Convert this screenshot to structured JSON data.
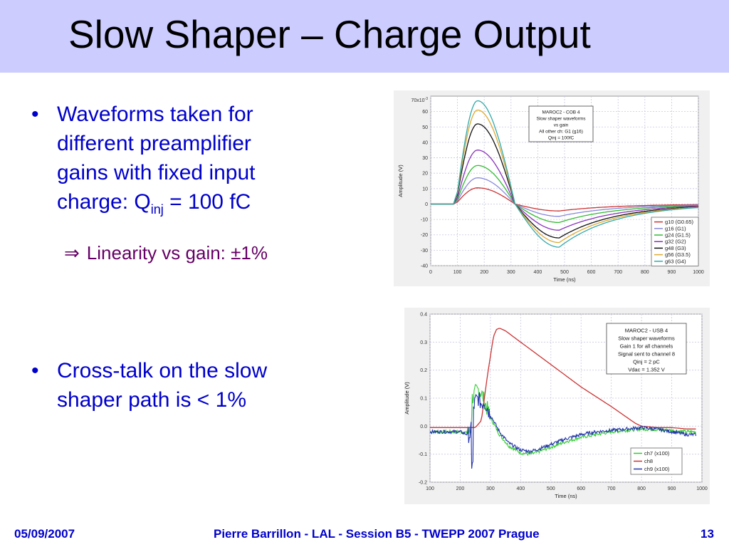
{
  "slide": {
    "title": "Slow Shaper – Charge Output",
    "bullet1": {
      "line1": "Waveforms taken for",
      "line2": "different preamplifier",
      "line3": "gains with fixed input",
      "line4_prefix": "charge: Q",
      "line4_sub": "inj",
      "line4_suffix": " = 100 fC"
    },
    "sub_bullet": {
      "arrow": "⇒",
      "text": "Linearity vs gain: ±1%"
    },
    "bullet2": {
      "line1": "Cross-talk on the slow",
      "line2": "shaper path is < 1%"
    },
    "bullet_glyph": "•"
  },
  "footer": {
    "date": "05/09/2007",
    "center": "Pierre Barrillon - LAL - Session B5 - TWEPP 2007 Prague",
    "page": "13"
  },
  "chart_data": [
    {
      "type": "line",
      "xlabel": "Time (ns)",
      "ylabel": "Amplitude (V)",
      "y_exponent_label": "70x10",
      "y_exponent_sup": "-3",
      "xlim": [
        0,
        1000
      ],
      "ylim": [
        -0.04,
        0.07
      ],
      "xticks": [
        0,
        100,
        200,
        300,
        400,
        500,
        600,
        700,
        800,
        900,
        1000
      ],
      "xtick_labels": [
        "0",
        "100",
        "200",
        "300",
        "400",
        "500",
        "600",
        "700",
        "800",
        "900",
        "1000"
      ],
      "yticks": [
        -0.04,
        -0.03,
        -0.02,
        -0.01,
        0,
        0.01,
        0.02,
        0.03,
        0.04,
        0.05,
        0.06
      ],
      "ytick_labels": [
        "-40",
        "-30",
        "-20",
        "-10",
        "0",
        "10",
        "20",
        "30",
        "40",
        "50",
        "60"
      ],
      "grid": true,
      "legend_position": "bottom-right",
      "annotation": [
        "MAROC2 - COB 4",
        "Slow shaper waveforms",
        "vs gain",
        "All other ch: G1 (g16)",
        "Qinj = 100fC"
      ],
      "series_common": {
        "t0": 85,
        "rise_end": 100,
        "peak_t": 175,
        "zero_t": 315,
        "undershoot_t": 480
      },
      "series": [
        {
          "name": "g10 (G0.65)",
          "color": "#cc3333",
          "peak": 0.0105,
          "undershoot": -0.0045
        },
        {
          "name": "g16 (G1)",
          "color": "#8888dd",
          "peak": 0.017,
          "undershoot": -0.008
        },
        {
          "name": "g24 (G1.5)",
          "color": "#33bb33",
          "peak": 0.025,
          "undershoot": -0.012
        },
        {
          "name": "g32 (G2)",
          "color": "#8833bb",
          "peak": 0.035,
          "undershoot": -0.017
        },
        {
          "name": "g48 (G3)",
          "color": "#111111",
          "peak": 0.052,
          "undershoot": -0.022
        },
        {
          "name": "g56 (G3.5)",
          "color": "#ddaa33",
          "peak": 0.061,
          "undershoot": -0.025
        },
        {
          "name": "g63 (G4)",
          "color": "#33aaaa",
          "peak": 0.067,
          "undershoot": -0.028
        }
      ]
    },
    {
      "type": "line",
      "xlabel": "Time (ns)",
      "ylabel": "Amplitude (V)",
      "xlim": [
        100,
        1000
      ],
      "ylim": [
        -0.2,
        0.4
      ],
      "xticks": [
        100,
        200,
        300,
        400,
        500,
        600,
        700,
        800,
        900,
        1000
      ],
      "xtick_labels": [
        "100",
        "200",
        "300",
        "400",
        "500",
        "600",
        "700",
        "800",
        "900",
        "1000"
      ],
      "yticks": [
        -0.2,
        -0.1,
        0.0,
        0.1,
        0.2,
        0.3,
        0.4
      ],
      "ytick_labels": [
        "-0.2",
        "-0.1",
        "0.0",
        "0.1",
        "0.2",
        "0.3",
        "0.4"
      ],
      "grid": true,
      "legend_position": "bottom-right",
      "annotation": [
        "MAROC2 - USB 4",
        "Slow shaper waveforms",
        "Gain 1 for all channels",
        "Signal sent to channel 8",
        "Qinj = 2 pC",
        "Vdac = 1.352 V"
      ],
      "series": [
        {
          "name": "ch7 (x100)",
          "color": "#33cc33",
          "noisy": true,
          "x": [
            100,
            200,
            225,
            235,
            240,
            250,
            260,
            270,
            280,
            300,
            330,
            360,
            400,
            430,
            450,
            500,
            550,
            600,
            650,
            700,
            750,
            800,
            850,
            900,
            950,
            980
          ],
          "y": [
            -0.02,
            -0.02,
            -0.025,
            -0.02,
            0.1,
            0.12,
            0.13,
            0.12,
            0.09,
            0.03,
            -0.03,
            -0.07,
            -0.095,
            -0.1,
            -0.095,
            -0.075,
            -0.055,
            -0.04,
            -0.03,
            -0.02,
            -0.015,
            -0.01,
            -0.012,
            -0.015,
            -0.02,
            -0.02
          ]
        },
        {
          "name": "ch8",
          "color": "#cc3333",
          "noisy": false,
          "x": [
            100,
            250,
            270,
            290,
            310,
            320,
            330,
            350,
            400,
            500,
            600,
            700,
            780,
            800,
            850,
            900,
            950,
            980
          ],
          "y": [
            -0.005,
            -0.005,
            0.02,
            0.18,
            0.32,
            0.345,
            0.35,
            0.34,
            0.3,
            0.22,
            0.14,
            0.07,
            0.01,
            0.0,
            -0.005,
            -0.005,
            -0.01,
            -0.01
          ]
        },
        {
          "name": "ch9 (x100)",
          "color": "#2233aa",
          "noisy": true,
          "x": [
            100,
            200,
            225,
            235,
            240,
            250,
            260,
            270,
            280,
            300,
            330,
            360,
            400,
            430,
            450,
            500,
            550,
            600,
            650,
            700,
            750,
            800,
            850,
            900,
            950,
            980
          ],
          "y": [
            -0.02,
            -0.02,
            -0.03,
            -0.03,
            0.05,
            0.09,
            0.1,
            0.08,
            0.09,
            0.04,
            -0.02,
            -0.06,
            -0.085,
            -0.09,
            -0.085,
            -0.065,
            -0.045,
            -0.03,
            -0.02,
            -0.015,
            -0.01,
            -0.005,
            -0.01,
            -0.02,
            -0.03,
            -0.03
          ]
        }
      ]
    }
  ]
}
